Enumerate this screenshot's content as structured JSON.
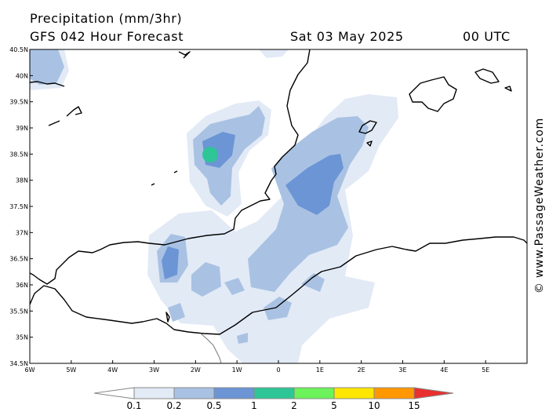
{
  "header": {
    "title": "Precipitation (mm/3hr)",
    "model_line": "GFS 042 Hour Forecast",
    "date": "Sat 03 May 2025",
    "time": "00 UTC"
  },
  "credit": "© www.PassageWeather.com",
  "axes": {
    "lat_labels": [
      "40.5N",
      "40N",
      "39.5N",
      "39N",
      "38.5N",
      "38N",
      "37.5N",
      "37N",
      "36.5N",
      "36N",
      "35.5N",
      "35N",
      "34.5N"
    ],
    "lon_labels": [
      "6W",
      "5W",
      "4W",
      "3W",
      "2W",
      "1W",
      "0",
      "1E",
      "2E",
      "3E",
      "4E",
      "5E"
    ]
  },
  "legend": {
    "labels": [
      "0.1",
      "0.2",
      "0.5",
      "1",
      "2",
      "5",
      "10",
      "15"
    ],
    "colors": [
      "#ffffff",
      "#e2eaf6",
      "#a9c2e3",
      "#6c95d6",
      "#2ec696",
      "#6cf25a",
      "#ffe600",
      "#ff9800",
      "#e8302e"
    ]
  },
  "map_colors": {
    "land_line": "#000000",
    "border_line": "#777777"
  }
}
